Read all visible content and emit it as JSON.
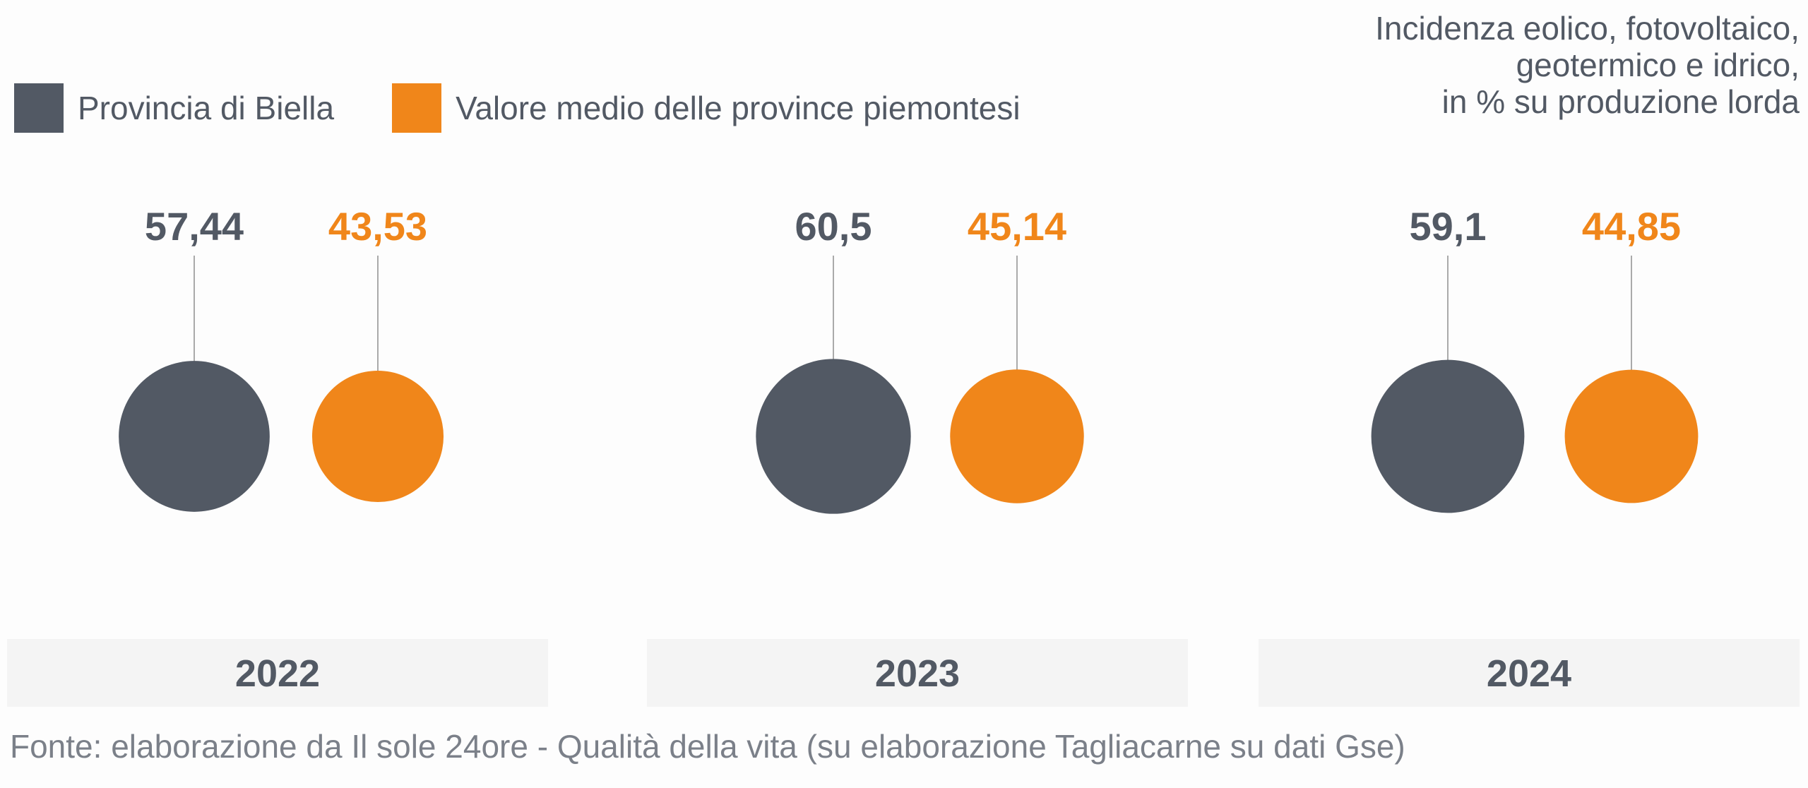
{
  "legend": [
    {
      "label": "Provincia di Biella",
      "color": "#525964"
    },
    {
      "label": "Valore medio delle province piemontesi",
      "color": "#f0861a"
    }
  ],
  "note": [
    "Incidenza eolico, fotovoltaico,",
    "geotermico e idrico,",
    "in % su produzione lorda"
  ],
  "source": "Fonte: elaborazione da Il sole 24ore - Qualità della vita (su elaborazione Tagliacarne su dati Gse)",
  "colors": {
    "biella": "#525964",
    "media": "#f0861a",
    "band": "#f4f4f4",
    "leader": "#aaaaaa"
  },
  "chart_data": {
    "type": "bubble",
    "categories": [
      "2022",
      "2023",
      "2024"
    ],
    "series": [
      {
        "name": "Provincia di Biella",
        "values": [
          57.44,
          60.5,
          59.1
        ],
        "labels": [
          "57,44",
          "60,5",
          "59,1"
        ]
      },
      {
        "name": "Valore medio delle province piemontesi",
        "values": [
          43.53,
          45.14,
          44.85
        ],
        "labels": [
          "43,53",
          "45,14",
          "44,85"
        ]
      }
    ]
  }
}
